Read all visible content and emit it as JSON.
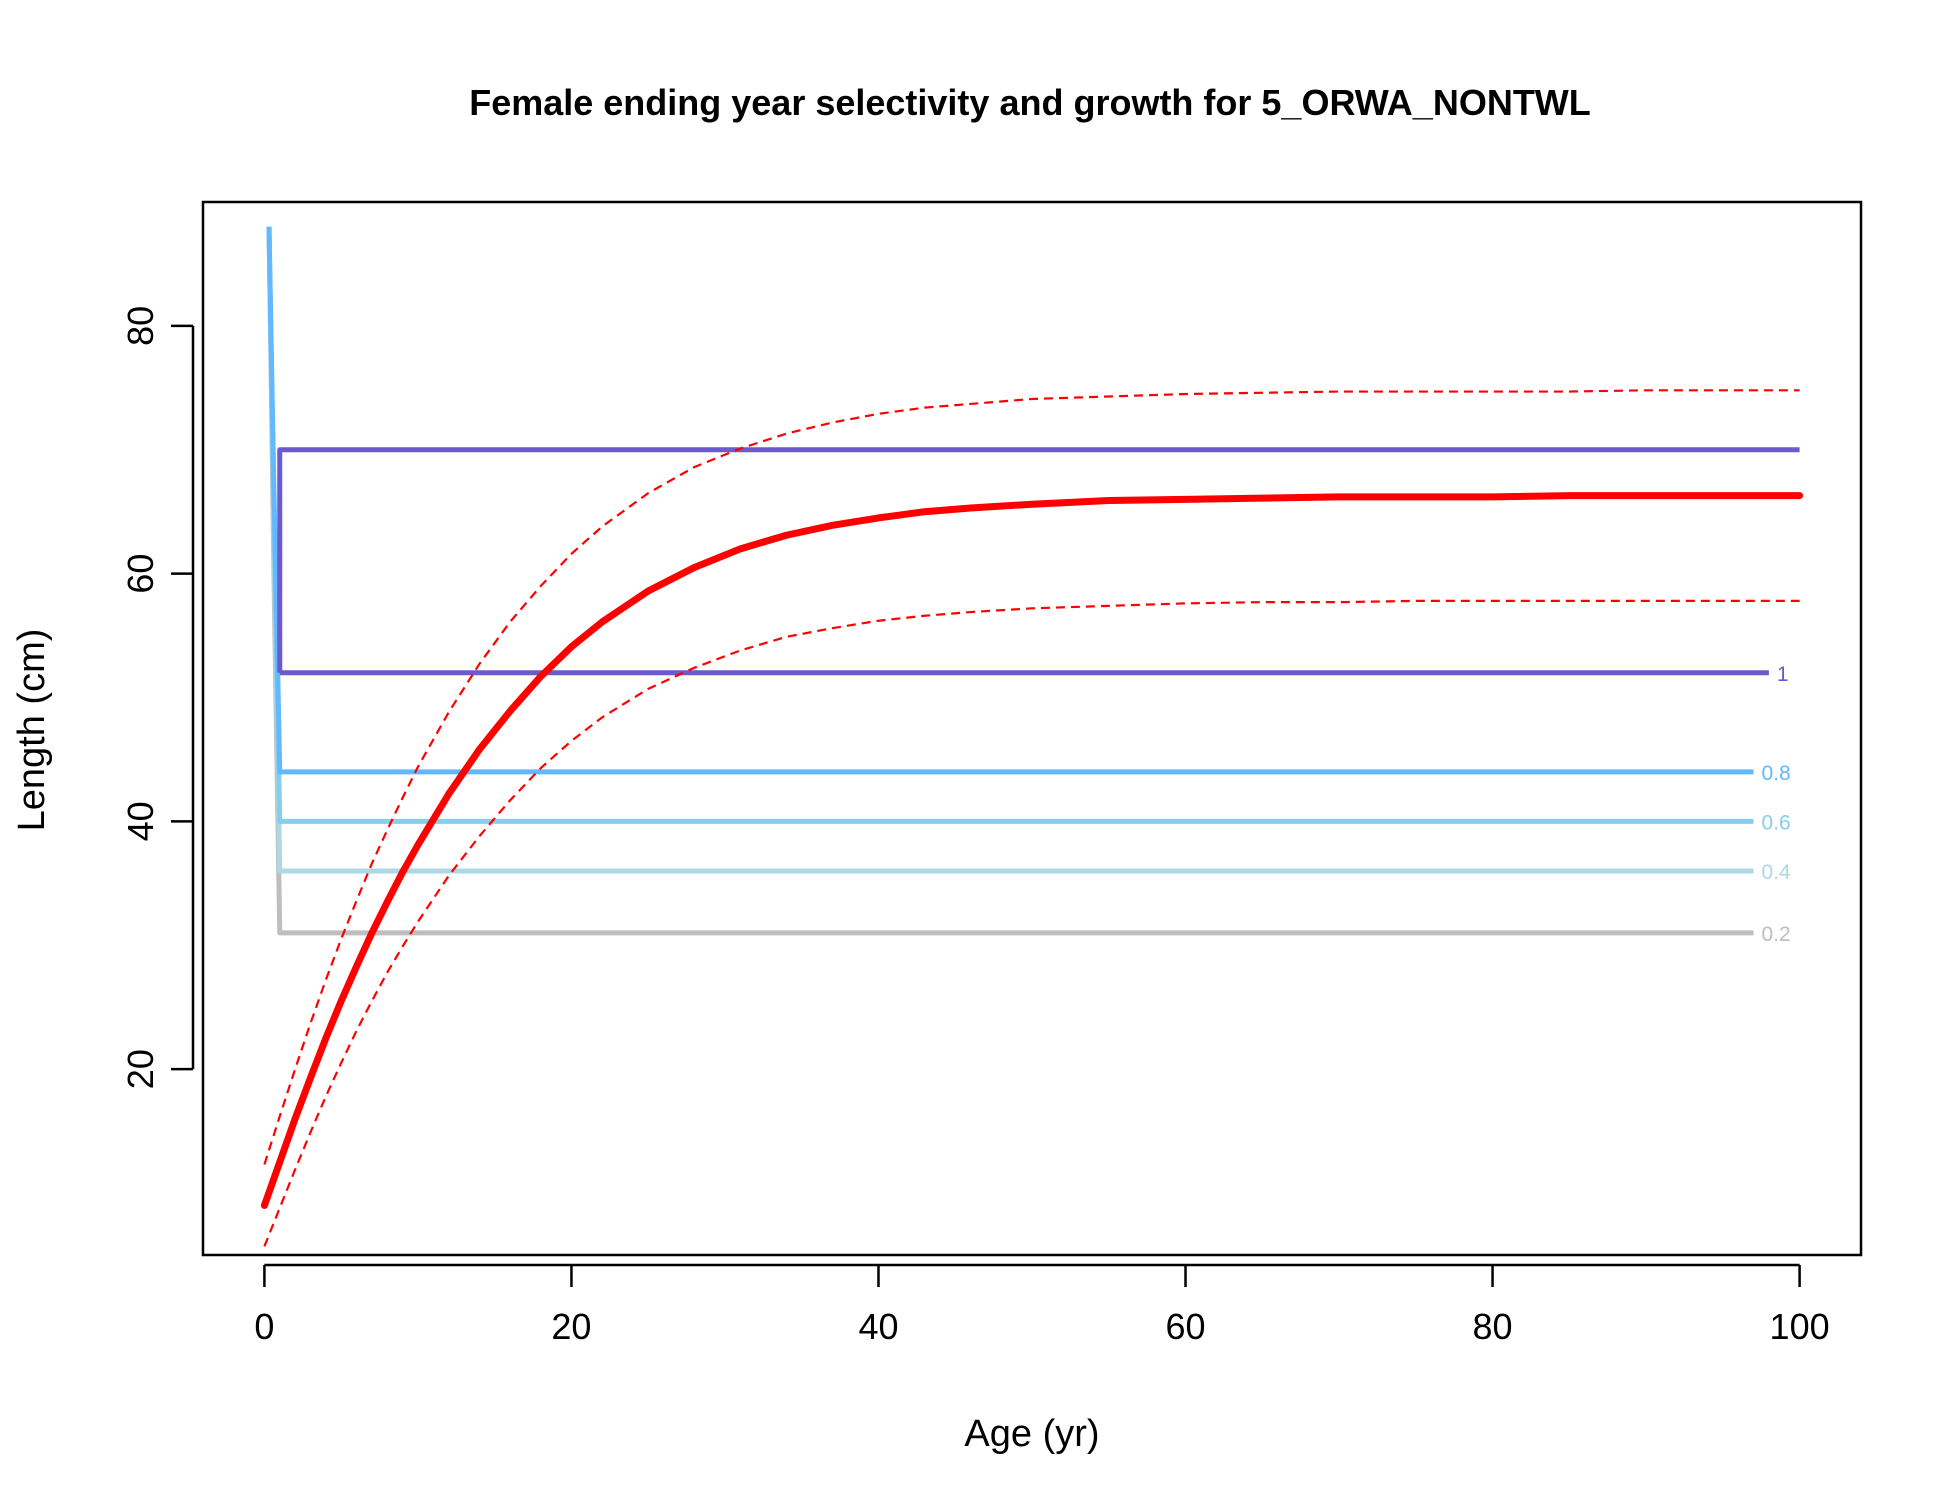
{
  "chart_data": {
    "type": "line",
    "title": "Female ending year selectivity and growth for 5_ORWA_NONTWL",
    "xlabel": "Age (yr)",
    "ylabel": "Length (cm)",
    "xlim": [
      -4,
      104
    ],
    "ylim": [
      5,
      90
    ],
    "x_ticks": [
      0,
      20,
      40,
      60,
      80,
      100
    ],
    "y_ticks": [
      20,
      40,
      60,
      80
    ],
    "grid": false,
    "legend": "none",
    "growth": {
      "color": "#ff0000",
      "mean": {
        "x": [
          0,
          1,
          2,
          3,
          4,
          5,
          6,
          7,
          8,
          9,
          10,
          12,
          14,
          16,
          18,
          20,
          22,
          25,
          28,
          31,
          34,
          37,
          40,
          43,
          46,
          50,
          55,
          60,
          65,
          70,
          75,
          80,
          85,
          90,
          95,
          100
        ],
        "y": [
          9.0,
          12.5,
          16.0,
          19.3,
          22.5,
          25.5,
          28.3,
          31.0,
          33.5,
          35.9,
          38.1,
          42.2,
          45.8,
          48.9,
          51.7,
          54.1,
          56.1,
          58.6,
          60.5,
          62.0,
          63.1,
          63.9,
          64.5,
          65.0,
          65.3,
          65.6,
          65.9,
          66.0,
          66.1,
          66.2,
          66.2,
          66.2,
          66.3,
          66.3,
          66.3,
          66.3
        ]
      },
      "upper": {
        "x": [
          0,
          1,
          2,
          3,
          4,
          5,
          6,
          7,
          8,
          9,
          10,
          12,
          14,
          16,
          18,
          20,
          22,
          25,
          28,
          31,
          34,
          37,
          40,
          43,
          46,
          50,
          55,
          60,
          65,
          70,
          75,
          80,
          85,
          90,
          95,
          100
        ],
        "y": [
          12.3,
          16.2,
          20.0,
          23.7,
          27.2,
          30.5,
          33.6,
          36.6,
          39.3,
          41.9,
          44.4,
          48.8,
          52.7,
          56.1,
          59.0,
          61.6,
          63.8,
          66.5,
          68.6,
          70.1,
          71.3,
          72.2,
          72.9,
          73.4,
          73.7,
          74.1,
          74.3,
          74.5,
          74.6,
          74.7,
          74.7,
          74.7,
          74.7,
          74.8,
          74.8,
          74.8
        ]
      },
      "lower": {
        "x": [
          0,
          1,
          2,
          3,
          4,
          5,
          6,
          7,
          8,
          9,
          10,
          12,
          14,
          16,
          18,
          20,
          22,
          25,
          28,
          31,
          34,
          37,
          40,
          43,
          46,
          50,
          55,
          60,
          65,
          70,
          75,
          80,
          85,
          90,
          95,
          100
        ],
        "y": [
          5.7,
          8.8,
          11.9,
          14.9,
          17.8,
          20.5,
          23.1,
          25.5,
          27.8,
          29.9,
          31.9,
          35.6,
          38.8,
          41.7,
          44.3,
          46.5,
          48.4,
          50.7,
          52.4,
          53.8,
          54.9,
          55.6,
          56.2,
          56.6,
          56.9,
          57.2,
          57.4,
          57.6,
          57.7,
          57.7,
          57.8,
          57.8,
          57.8,
          57.8,
          57.8,
          57.8
        ]
      }
    },
    "selectivity_contours": [
      {
        "level": "1",
        "color": "#6a5acd",
        "label_color": "#6a5acd",
        "length": 52,
        "drop_from": 70,
        "x_end": 98,
        "upper_length": 70,
        "upper_x_end": 100
      },
      {
        "level": "0.8",
        "color": "#63b8ff",
        "label_color": "#63b8ff",
        "length": 44,
        "drop_from": 88,
        "x_end": 97
      },
      {
        "level": "0.6",
        "color": "#87ceeb",
        "label_color": "#87ceeb",
        "length": 40,
        "drop_from": 88,
        "x_end": 97
      },
      {
        "level": "0.4",
        "color": "#add8e6",
        "label_color": "#add8e6",
        "length": 36,
        "drop_from": 88,
        "x_end": 97
      },
      {
        "level": "0.2",
        "color": "#bebebe",
        "label_color": "#bebebe",
        "length": 31,
        "drop_from": 88,
        "x_end": 97
      }
    ]
  }
}
